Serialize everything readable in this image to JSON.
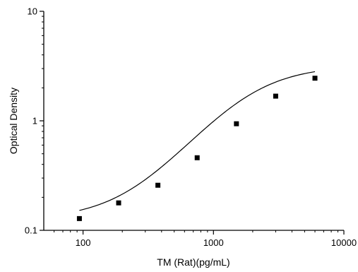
{
  "chart_data": {
    "type": "scatter",
    "title": "",
    "xlabel": "TM (Rat)(pg/mL)",
    "ylabel": "Optical Density",
    "xscale": "log",
    "yscale": "log",
    "xlim": [
      50,
      10000
    ],
    "ylim": [
      0.1,
      10
    ],
    "x_ticks": [
      {
        "value": 100,
        "label": "100"
      },
      {
        "value": 1000,
        "label": "1000"
      },
      {
        "value": 10000,
        "label": "10000"
      }
    ],
    "y_ticks": [
      {
        "value": 0.1,
        "label": "0.1"
      },
      {
        "value": 1,
        "label": "1"
      },
      {
        "value": 10,
        "label": "10"
      }
    ],
    "grid": false,
    "legend": "none",
    "series": [
      {
        "marker": "square",
        "color": "#000000",
        "x": [
          93.75,
          187.5,
          375,
          750,
          1500,
          3000,
          6000
        ],
        "y": [
          0.128,
          0.178,
          0.258,
          0.46,
          0.94,
          1.68,
          2.45
        ]
      }
    ],
    "fit_curve": {
      "type": "four-parameter logistic",
      "color": "#000000",
      "bottom": 0.125,
      "top": 3.2,
      "ec50": 1800,
      "hill": 1.6
    }
  }
}
